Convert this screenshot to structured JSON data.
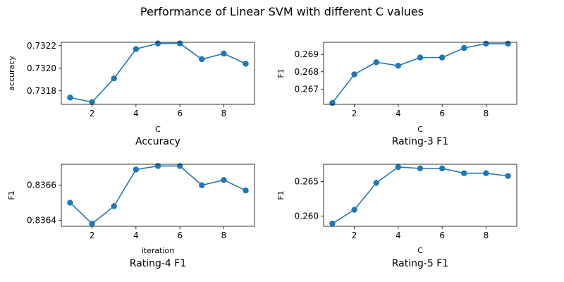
{
  "figure": {
    "title": "Performance of Linear SVM with different C values"
  },
  "chart_data": [
    {
      "type": "line",
      "subtitle": "Accuracy",
      "xlabel": "C",
      "ylabel": "accuracy",
      "x": [
        1,
        2,
        3,
        4,
        5,
        6,
        7,
        8,
        9
      ],
      "y": [
        0.73174,
        0.7317,
        0.73191,
        0.73217,
        0.73222,
        0.73222,
        0.73208,
        0.73213,
        0.73204
      ],
      "xlim": [
        0.6,
        9.4
      ],
      "ylim": [
        0.73168,
        0.73223
      ],
      "xticks": [
        2,
        4,
        6,
        8
      ],
      "yticks": [
        0.7318,
        0.732,
        0.7322
      ],
      "ytick_labels": [
        "0.7318",
        "0.7320",
        "0.7322"
      ],
      "color": "#1f77b4",
      "grid": false
    },
    {
      "type": "line",
      "subtitle": "Rating-3 F1",
      "xlabel": "C",
      "ylabel": "F1",
      "x": [
        1,
        2,
        3,
        4,
        5,
        6,
        7,
        8,
        9
      ],
      "y": [
        0.2662,
        0.26785,
        0.26855,
        0.26835,
        0.26882,
        0.26882,
        0.26937,
        0.26962,
        0.26962
      ],
      "xlim": [
        0.6,
        9.4
      ],
      "ylim": [
        0.26612,
        0.2697
      ],
      "xticks": [
        2,
        4,
        6,
        8
      ],
      "yticks": [
        0.267,
        0.268,
        0.269
      ],
      "ytick_labels": [
        "0.267",
        "0.268",
        "0.269"
      ],
      "color": "#1f77b4",
      "grid": false
    },
    {
      "type": "line",
      "subtitle": "Rating-4 F1",
      "xlabel": "iteration",
      "ylabel": "F1",
      "x": [
        1,
        2,
        3,
        4,
        5,
        6,
        7,
        8,
        9
      ],
      "y": [
        0.8365,
        0.83638,
        0.83648,
        0.83669,
        0.83671,
        0.83671,
        0.8366,
        0.83663,
        0.83657
      ],
      "xlim": [
        0.6,
        9.4
      ],
      "ylim": [
        0.836365,
        0.83672
      ],
      "xticks": [
        2,
        4,
        6,
        8
      ],
      "yticks": [
        0.8364,
        0.8366
      ],
      "ytick_labels": [
        "0.8364",
        "0.8366"
      ],
      "color": "#1f77b4",
      "grid": false
    },
    {
      "type": "line",
      "subtitle": "Rating-5 F1",
      "xlabel": "C",
      "ylabel": "F1",
      "x": [
        1,
        2,
        3,
        4,
        5,
        6,
        7,
        8,
        9
      ],
      "y": [
        0.2589,
        0.2609,
        0.2648,
        0.2671,
        0.2669,
        0.2669,
        0.2662,
        0.2662,
        0.2658
      ],
      "xlim": [
        0.6,
        9.4
      ],
      "ylim": [
        0.2585,
        0.2675
      ],
      "xticks": [
        2,
        4,
        6,
        8
      ],
      "yticks": [
        0.26,
        0.265
      ],
      "ytick_labels": [
        "0.260",
        "0.265"
      ],
      "color": "#1f77b4",
      "grid": false
    }
  ]
}
